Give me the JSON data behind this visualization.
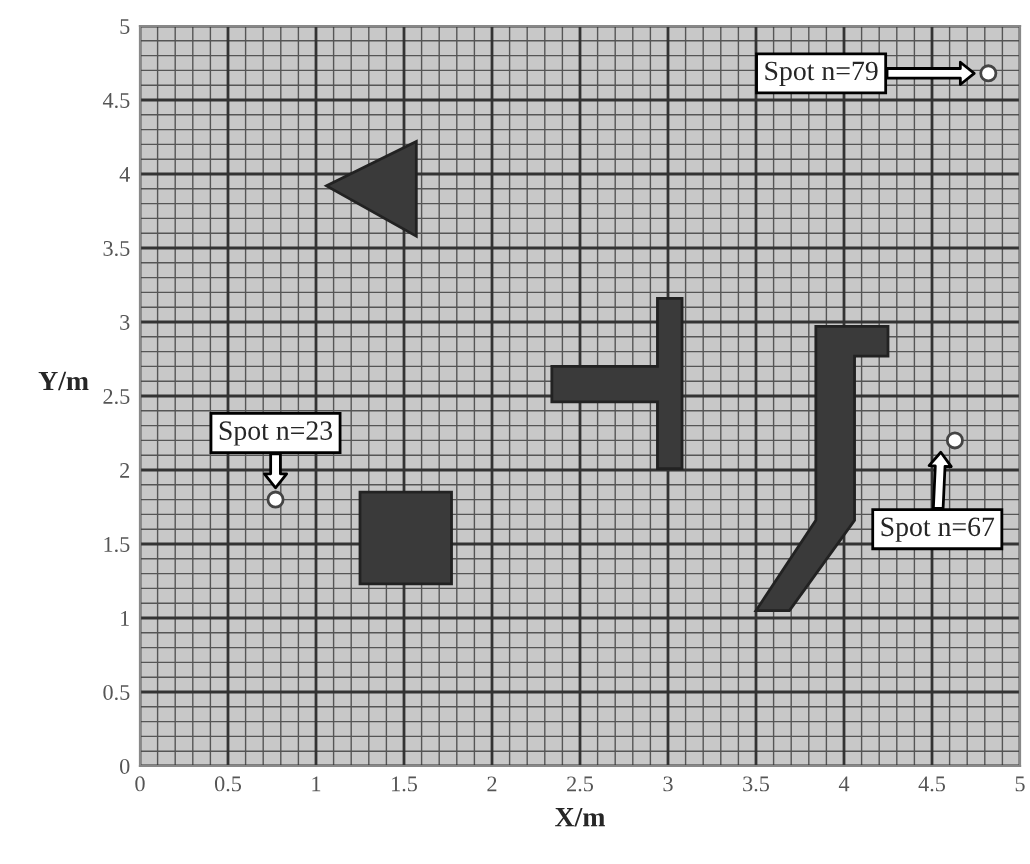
{
  "chart_data": {
    "type": "scatter",
    "xlabel": "X/m",
    "ylabel": "Y/m",
    "x": [
      0.77,
      4.82,
      4.63
    ],
    "series": [
      {
        "color": "#ffffff",
        "values": [
          1.8,
          4.68,
          2.2
        ]
      }
    ],
    "marker": "circle",
    "xlim": [
      0,
      5
    ],
    "ylim": [
      0,
      5
    ],
    "xticks": [
      0,
      0.5,
      1,
      1.5,
      2,
      2.5,
      3,
      3.5,
      4,
      4.5,
      5
    ],
    "yticks": [
      0,
      0.5,
      1,
      1.5,
      2,
      2.5,
      3,
      3.5,
      4,
      4.5,
      5
    ],
    "grid": true,
    "annotations": [
      {
        "text": "Spot n=23",
        "x": 0.77,
        "y": 1.8
      },
      "Spot n=79",
      {
        "text": "Spot n=67",
        "x": 4.63,
        "y": 2.2
      }
    ]
  }
}
